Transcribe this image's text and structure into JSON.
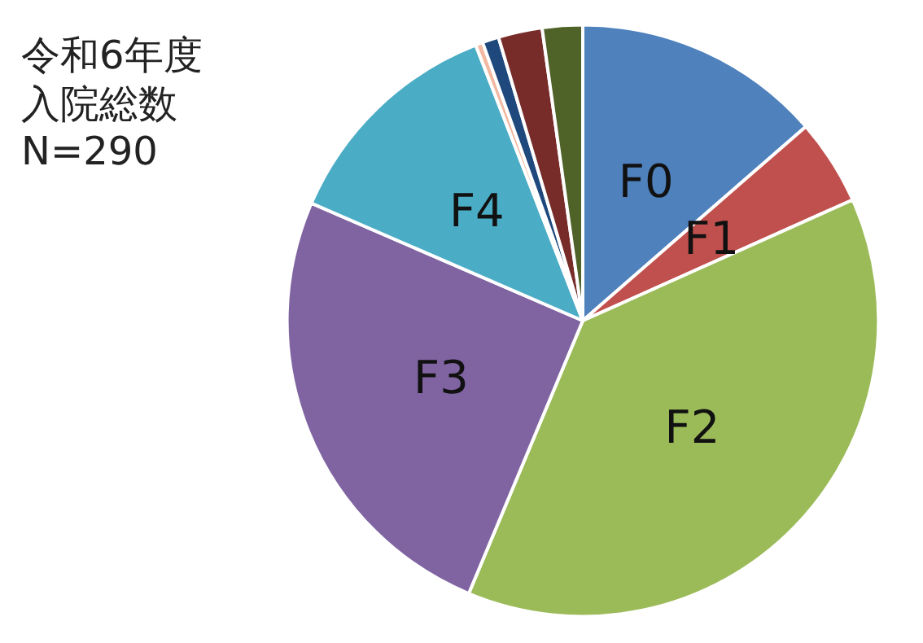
{
  "chart_data": {
    "type": "pie",
    "title": "令和6年度入院総数",
    "subtitle": "N=290",
    "categories": [
      "F0",
      "F1",
      "F2",
      "F3",
      "F4",
      null,
      null,
      null,
      null
    ],
    "values": [
      13.6,
      4.7,
      38.0,
      25.2,
      12.6,
      0.4,
      0.9,
      2.4,
      2.2
    ],
    "colors": [
      "#4f81bd",
      "#c0504d",
      "#9bbb59",
      "#8064a2",
      "#4bacc6",
      "#f2b8a0",
      "#1f497d",
      "#772c2a",
      "#4f6228"
    ],
    "legend": false
  }
}
